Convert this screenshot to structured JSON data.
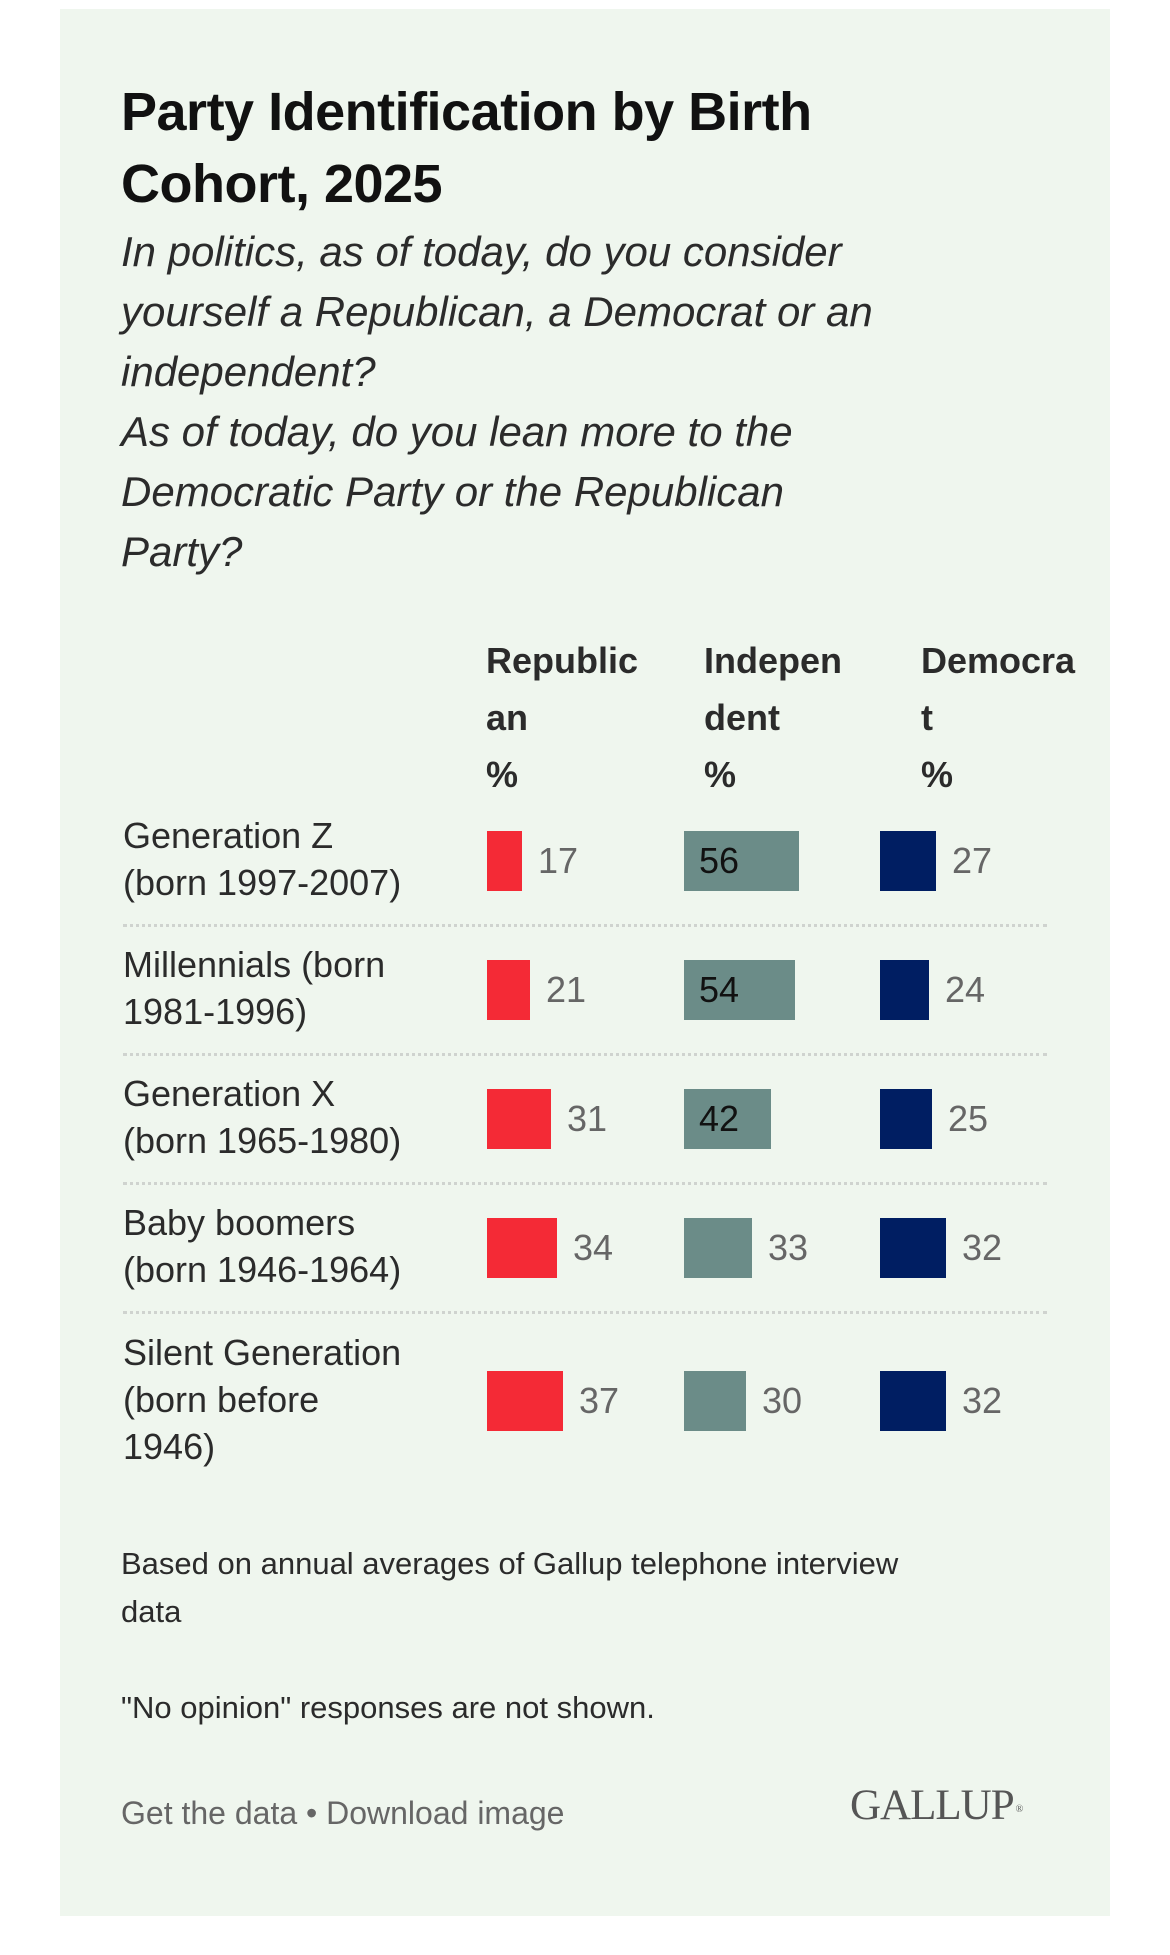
{
  "header": {
    "title_lines": [
      "Party Identification by Birth",
      "Cohort, 2025"
    ],
    "subtitle_lines": [
      "In politics, as of today, do you consider",
      "yourself a Republican, a Democrat or an",
      "independent?",
      "As of today, do you lean more to the",
      "Democratic Party or the Republican",
      "Party?"
    ]
  },
  "chart_data": {
    "type": "table",
    "title": "Party Identification by Birth Cohort, 2025",
    "subtitle": "In politics, as of today, do you consider yourself a Republican, a Democrat or an independent? As of today, do you lean more to the Democratic Party or the Republican Party?",
    "columns": [
      {
        "key": "republican",
        "header_lines": [
          "Republic",
          "an",
          "%"
        ],
        "color": "#F42A36"
      },
      {
        "key": "independent",
        "header_lines": [
          "Indepen",
          "dent",
          "%"
        ],
        "color": "#6B8C88"
      },
      {
        "key": "democrat",
        "header_lines": [
          "Democra",
          "t",
          "%"
        ],
        "color": "#001E62"
      }
    ],
    "categories": [
      "Generation Z (born 1997-2007)",
      "Millennials (born 1981-1996)",
      "Generation X (born 1965-1980)",
      "Baby boomers (born 1946-1964)",
      "Silent Generation (born before 1946)"
    ],
    "category_label_lines": [
      [
        "Generation Z",
        "(born 1997-2007)"
      ],
      [
        "Millennials (born",
        "1981-1996)"
      ],
      [
        "Generation X",
        "(born 1965-1980)"
      ],
      [
        "Baby boomers",
        "(born 1946-1964)"
      ],
      [
        "Silent Generation",
        "(born before",
        "1946)"
      ]
    ],
    "series": [
      {
        "name": "Republican %",
        "values": [
          17,
          21,
          31,
          34,
          37
        ]
      },
      {
        "name": "Independent %",
        "values": [
          56,
          54,
          42,
          33,
          30
        ]
      },
      {
        "name": "Democrat %",
        "values": [
          27,
          24,
          25,
          32,
          32
        ]
      }
    ],
    "unit": "%"
  },
  "notes": {
    "note1_lines": [
      "Based on annual averages of Gallup telephone interview",
      "data"
    ],
    "note2": "\"No opinion\" responses are not shown."
  },
  "footer": {
    "get_data": "Get the data",
    "separator": " • ",
    "download_image": "Download image",
    "logo": "GALLUP",
    "logo_mark": "®"
  }
}
